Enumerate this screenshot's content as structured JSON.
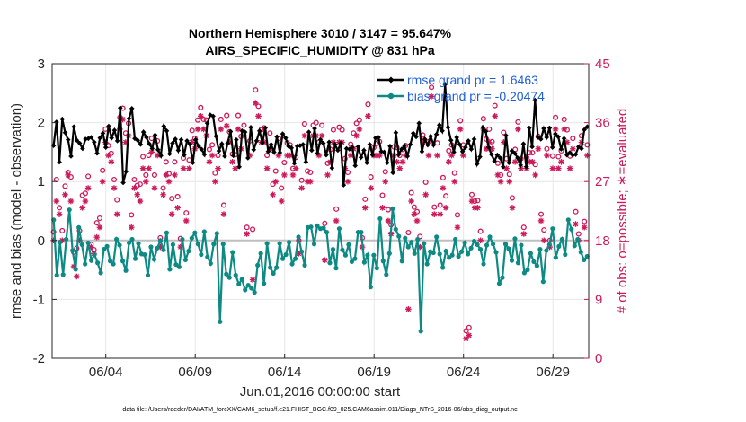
{
  "chart_data": {
    "type": "line",
    "title": "Northern Hemisphere 3010 / 3147 = 95.647%",
    "subtitle": "AIRS_SPECIFIC_HUMIDITY @ 831 hPa",
    "xlabel": "Jun.01,2016 00:00:00 start",
    "ylabel": "rmse and bias (model - observation)",
    "ylabel_right": "# of obs: o=possible; ∗=evaluated",
    "footer": "data file: /Users/raeder/DAI/ATM_forcXX/CAM6_setup/f.e21.FHIST_BGC.f09_025.CAM6assim.011/Diags_NTrS_2016-06/obs_diag_output.nc",
    "xlim": [
      1.0,
      31.0
    ],
    "ylim": [
      -2,
      3
    ],
    "ylim_right": [
      0,
      45
    ],
    "grid": true,
    "x_tick_labels": [
      "06/04",
      "06/09",
      "06/14",
      "06/19",
      "06/24",
      "06/29"
    ],
    "x_tick_values": [
      4,
      9,
      14,
      19,
      24,
      29
    ],
    "y_ticks": [
      "-2",
      "-1",
      "0",
      "1",
      "2",
      "3"
    ],
    "y_ticks_right": [
      "0",
      "9",
      "18",
      "27",
      "36",
      "45"
    ],
    "legend_position": "top-right",
    "zero_line": 0,
    "colors": {
      "rmse": "#000000",
      "bias": "#0e8a84",
      "obs": "#cc1a5b",
      "legend_text": "#1f5fd6",
      "grid": "#e6e6e6",
      "zero": "#bfbfbf"
    },
    "series": [
      {
        "name": "rmse grand pr = 1.6463",
        "axis": "left",
        "values": [
          1.61,
          2.01,
          1.33,
          2.06,
          1.83,
          1.71,
          1.43,
          1.93,
          1.7,
          1.65,
          1.56,
          1.72,
          1.73,
          1.75,
          1.67,
          1.48,
          1.74,
          1.82,
          1.58,
          1.94,
          1.74,
          1.87,
          1.69,
          2.25,
          0.98,
          1.17,
          2.07,
          2.24,
          1.73,
          1.7,
          1.63,
          1.84,
          1.75,
          1.64,
          1.56,
          1.79,
          1.54,
          1.44,
          1.94,
          1.86,
          1.47,
          1.65,
          1.72,
          1.53,
          1.71,
          1.45,
          1.69,
          1.63,
          1.32,
          1.71,
          1.6,
          1.55,
          1.46,
          1.99,
          2.13,
          2.11,
          1.77,
          1.52,
          1.64,
          1.43,
          1.65,
          1.85,
          1.44,
          1.71,
          1.25,
          1.86,
          1.84,
          1.4,
          1.92,
          1.54,
          1.69,
          1.86,
          1.66,
          1.91,
          1.51,
          1.63,
          1.5,
          1.76,
          1.49,
          1.81,
          1.74,
          1.6,
          1.57,
          1.31,
          1.6,
          1.61,
          1.63,
          1.33,
          1.84,
          1.53,
          1.9,
          1.48,
          1.71,
          1.65,
          1.45,
          1.67,
          1.23,
          1.63,
          1.53,
          1.65,
          0.94,
          1.56,
          1.55,
          1.58,
          1.27,
          1.59,
          1.41,
          1.53,
          1.32,
          1.63,
          1.45,
          1.74,
          1.75,
          1.51,
          1.5,
          1.32,
          1.6,
          1.15,
          1.83,
          1.46,
          1.55,
          1.61,
          1.43,
          1.63,
          1.82,
          1.76,
          1.99,
          1.51,
          1.72,
          1.62,
          1.77,
          1.62,
          1.8,
          1.96,
          1.86,
          2.65,
          1.92,
          1.7,
          1.5,
          1.75,
          1.63,
          1.51,
          1.58,
          1.69,
          1.55,
          1.72,
          1.3,
          1.42,
          1.92,
          1.85,
          1.58,
          1.46,
          1.35,
          1.45,
          1.4,
          1.25,
          1.78,
          1.32,
          1.52,
          1.48,
          1.4,
          1.28,
          1.64,
          1.25,
          1.91,
          1.59,
          2.38,
          1.75,
          1.72,
          1.9,
          1.75,
          1.91,
          1.58,
          1.81,
          1.76,
          1.55,
          1.73,
          1.45,
          1.49,
          1.45,
          1.46,
          1.59,
          1.56,
          1.88,
          1.93
        ]
      },
      {
        "name": "bias grand pr = -0.20474",
        "axis": "left",
        "values": [
          0.35,
          -0.59,
          -0.03,
          -0.58,
          0.02,
          0.52,
          -0.17,
          -0.49,
          0.22,
          -0.07,
          -0.4,
          -0.04,
          -0.34,
          -0.24,
          -0.38,
          -0.55,
          -0.15,
          -0.1,
          -0.35,
          -0.4,
          0.02,
          -0.08,
          -0.35,
          -0.51,
          -0.04,
          0.02,
          -0.31,
          -0.05,
          -0.23,
          -0.24,
          -0.59,
          -0.11,
          -0.32,
          -0.13,
          0.0,
          -0.16,
          0.13,
          -0.49,
          -0.07,
          -0.41,
          -0.45,
          0.02,
          -0.33,
          -0.18,
          0.04,
          0.13,
          -0.06,
          -0.24,
          0.15,
          -0.28,
          -0.39,
          -0.06,
          0.12,
          -1.38,
          -0.06,
          -0.57,
          -0.63,
          -0.2,
          -0.59,
          -0.74,
          -0.66,
          -0.84,
          -0.76,
          -0.81,
          -0.88,
          -0.42,
          -0.22,
          -0.73,
          -0.05,
          -0.46,
          -0.56,
          -0.46,
          -0.05,
          -0.31,
          -0.24,
          -0.03,
          -0.4,
          -0.31,
          0.06,
          -0.19,
          -0.42,
          0.22,
          0.23,
          -0.06,
          0.25,
          0.2,
          0.21,
          0.14,
          -0.38,
          -0.15,
          -0.47,
          0.2,
          -0.16,
          -0.25,
          -0.07,
          -0.36,
          -0.31,
          0.14,
          0.14,
          -0.37,
          -0.25,
          -0.79,
          -0.25,
          -0.47,
          0.37,
          -0.35,
          -0.58,
          -0.22,
          0.54,
          0.19,
          0.07,
          -0.35,
          0.04,
          -0.11,
          -0.03,
          -0.22,
          0.02,
          -1.54,
          -0.05,
          -0.4,
          -0.19,
          -0.21,
          0.06,
          -0.23,
          -0.46,
          -0.18,
          -0.29,
          -0.25,
          0.02,
          -0.27,
          -0.19,
          -0.04,
          -0.23,
          -0.13,
          -0.01,
          -0.07,
          -0.15,
          -0.4,
          -0.08,
          0.06,
          -0.06,
          -0.2,
          -0.73,
          -0.63,
          -0.06,
          -0.14,
          -0.34,
          0.03,
          -0.38,
          -0.08,
          -0.55,
          -0.5,
          -0.22,
          -0.36,
          -0.43,
          -0.15,
          -0.7,
          -0.17,
          -0.07,
          0.2,
          -0.29,
          -0.1,
          0.02,
          -0.24,
          0.35,
          0.19,
          -0.09,
          0.02,
          -0.2,
          -0.33,
          -0.27
        ]
      },
      {
        "name": "obs possible",
        "axis": "right",
        "marker": "o",
        "values": [
          19.3,
          27.3,
          23.0,
          19.5,
          26.3,
          28.4,
          27.7,
          16.2,
          16.8,
          19.5,
          24.9,
          25.2,
          27.8,
          17.4,
          16.6,
          20.7,
          21.4,
          28.7,
          35.0,
          32.5,
          31.3,
          27.3,
          24.2,
          36.8,
          38.2,
          34.4,
          35.9,
          21.9,
          27.3,
          26.4,
          26.6,
          30.8,
          28.0,
          31.0,
          33.6,
          28.0,
          33.2,
          18.4,
          26.0,
          30.0,
          28.2,
          24.4,
          30.0,
          24.7,
          18.3,
          30.6,
          22.2,
          30.3,
          34.8,
          33.6,
          36.4,
          38.3,
          36.5,
          36.4,
          31.9,
          32.6,
          28.3,
          31.0,
          36.5,
          23.4,
          37.1,
          34.6,
          31.2,
          31.1,
          37.1,
          33.9,
          35.6,
          20.0,
          33.2,
          19.7,
          41.0,
          38.5,
          34.9,
          35.2,
          31.0,
          34.4,
          26.6,
          28.6,
          33.6,
          26.0,
          29.9,
          32.9,
          32.6,
          29.0,
          30.7,
          18.0,
          27.2,
          35.8,
          28.6,
          28.4,
          35.6,
          36.0,
          33.0,
          35.6,
          20.6,
          29.8,
          31.9,
          34.9,
          22.8,
          35.3,
          34.9,
          30.5,
          28.4,
          32.7,
          34.4,
          35.9,
          36.4,
          18.4,
          24.3,
          38.8,
          27.7,
          32.2,
          32.8,
          33.1,
          24.9,
          28.5,
          22.7,
          20.4,
          32.3,
          32.2,
          31.0,
          31.9,
          32.5,
          19.2,
          25.3,
          23.1,
          22.4,
          18.6,
          34.1,
          26.9,
          33.1,
          41.4,
          23.1,
          32.9,
          23.4,
          27.6,
          24.8,
          31.7,
          32.6,
          28.3,
          21.9,
          36.3,
          32.6,
          4.2,
          4.7,
          25.0,
          24.0,
          24.1,
          19.4,
          36.6,
          33.5,
          35.0,
          33.1,
          38.6,
          29.8,
          28.0,
          34.5,
          30.5,
          28.1,
          24.5,
          31.9,
          36.1,
          30.5,
          20.0,
          30.7,
          31.4,
          31.4,
          29.6,
          33.9,
          22.0,
          19.6,
          32.0,
          18.0,
          30.9,
          36.8,
          30.8,
          31.7,
          36.5,
          34.9,
          30.9,
          33.6,
          22.4,
          19.0,
          34.0,
          20.9,
          32.6
        ]
      },
      {
        "name": "obs evaluated",
        "axis": "right",
        "marker": "*",
        "values": [
          18.0,
          24.0,
          22.0,
          18.0,
          25.0,
          28.0,
          24.0,
          14.0,
          12.5,
          18.0,
          23.0,
          24.0,
          26.0,
          17.0,
          16.0,
          18.5,
          20.0,
          27.0,
          33.0,
          31.0,
          30.0,
          26.0,
          22.0,
          35.0,
          36.5,
          33.0,
          34.0,
          20.0,
          26.0,
          25.0,
          24.0,
          29.0,
          27.0,
          29.0,
          31.5,
          26.0,
          31.0,
          17.0,
          25.0,
          28.0,
          27.0,
          22.0,
          28.0,
          23.0,
          17.0,
          29.0,
          21.0,
          29.0,
          33.0,
          32.0,
          35.0,
          37.0,
          35.0,
          34.0,
          30.0,
          31.0,
          27.0,
          29.0,
          35.0,
          22.0,
          35.5,
          33.0,
          30.0,
          29.0,
          35.0,
          32.0,
          34.0,
          19.0,
          31.0,
          12.0,
          39.0,
          37.0,
          33.0,
          33.0,
          29.0,
          32.0,
          25.0,
          27.0,
          31.0,
          24.0,
          28.0,
          31.0,
          31.0,
          28.0,
          29.0,
          16.0,
          26.0,
          34.0,
          27.0,
          27.0,
          34.0,
          34.0,
          31.0,
          34.0,
          15.0,
          28.0,
          30.0,
          33.0,
          21.0,
          33.0,
          33.0,
          29.0,
          27.0,
          31.0,
          32.0,
          34.0,
          35.0,
          17.0,
          23.0,
          37.0,
          26.0,
          31.0,
          31.0,
          31.0,
          23.0,
          27.0,
          21.0,
          19.0,
          31.0,
          30.0,
          29.0,
          30.0,
          31.0,
          7.5,
          24.0,
          22.0,
          21.0,
          17.0,
          33.0,
          25.0,
          31.0,
          40.0,
          22.0,
          31.0,
          22.0,
          26.0,
          23.0,
          30.0,
          31.0,
          27.0,
          20.0,
          35.0,
          31.0,
          3.0,
          3.5,
          24.0,
          23.0,
          23.0,
          18.0,
          35.0,
          32.0,
          33.0,
          32.0,
          37.0,
          28.0,
          27.0,
          33.0,
          29.0,
          27.0,
          23.0,
          30.0,
          35.0,
          29.0,
          19.0,
          29.0,
          30.0,
          30.0,
          28.0,
          32.0,
          21.0,
          18.0,
          31.0,
          17.0,
          29.0,
          35.0,
          29.0,
          30.0,
          35.0,
          33.0,
          29.0,
          32.0,
          20.5,
          18.0,
          33.0,
          20.0,
          31.0
        ]
      }
    ]
  }
}
